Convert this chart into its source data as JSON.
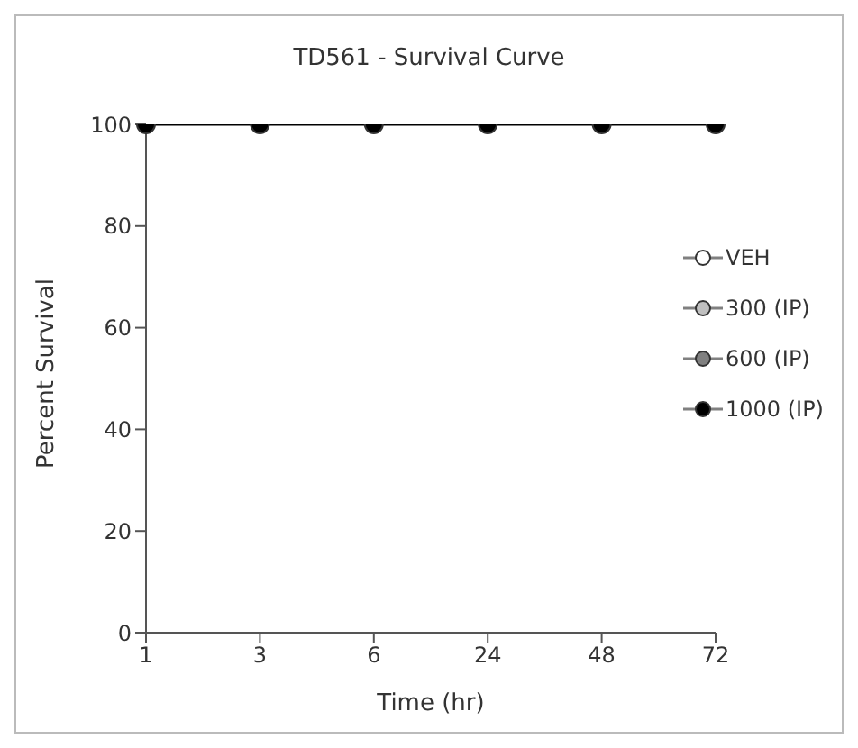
{
  "chart_data": {
    "type": "line",
    "title": "TD561 - Survival Curve",
    "xlabel": "Time (hr)",
    "ylabel": "Percent Survival",
    "categories": [
      "1",
      "3",
      "6",
      "24",
      "48",
      "72"
    ],
    "series": [
      {
        "name": "VEH",
        "color": "#ffffff",
        "values": [
          null,
          null,
          null,
          null,
          null,
          null
        ]
      },
      {
        "name": "300 (IP)",
        "color": "#c0c0c0",
        "values": [
          null,
          null,
          null,
          null,
          null,
          null
        ]
      },
      {
        "name": "600 (IP)",
        "color": "#808080",
        "values": [
          null,
          null,
          null,
          null,
          null,
          null
        ]
      },
      {
        "name": "1000 (IP)",
        "color": "#000000",
        "values": [
          100,
          100,
          100,
          100,
          100,
          100
        ]
      }
    ],
    "ylim": [
      0,
      100
    ],
    "yticks": [
      0,
      20,
      40,
      60,
      80,
      100
    ],
    "grid": false,
    "legend": "right",
    "marker": "circle",
    "line_style": "solid"
  }
}
